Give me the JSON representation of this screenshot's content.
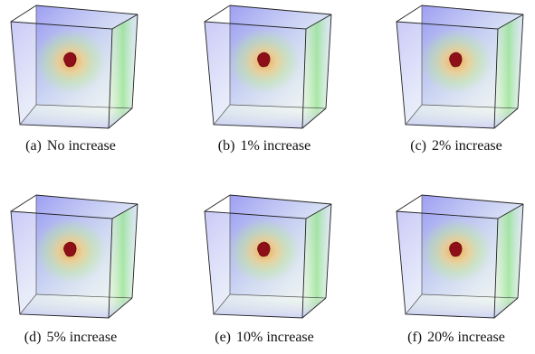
{
  "panels": [
    {
      "label": "(a)",
      "caption": "No increase"
    },
    {
      "label": "(b)",
      "caption": "1% increase"
    },
    {
      "label": "(c)",
      "caption": "2% increase"
    },
    {
      "label": "(d)",
      "caption": "5% increase"
    },
    {
      "label": "(e)",
      "caption": "10% increase"
    },
    {
      "label": "(f)",
      "caption": "20% increase"
    }
  ]
}
